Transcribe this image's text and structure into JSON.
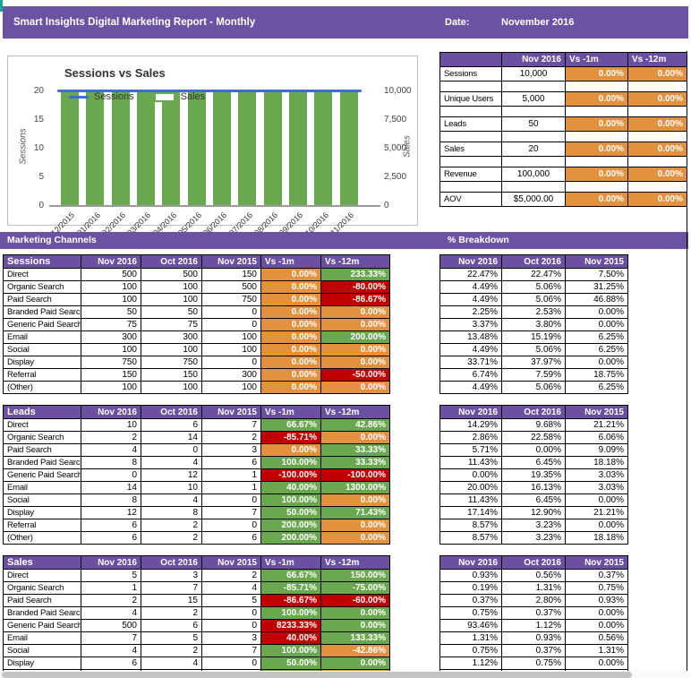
{
  "banner": {
    "title": "Smart Insights Digital Marketing Report - Monthly",
    "date_label": "Date:",
    "date_value": "November 2016"
  },
  "colors": {
    "purple": "#6B4FA1",
    "banner_purple": "#6C52A3",
    "orange": "#E4913E",
    "green": "#6AA84F",
    "red": "#C00000",
    "chart_bar_green": "#6AA850",
    "chart_line_blue": "#3E6FC9",
    "accent_teal": "#14A89B",
    "scrollbar_gray": "#C3C3C3"
  },
  "chart_data": {
    "type": "bar",
    "title": "Sessions vs Sales",
    "categories": [
      "01/12/2015",
      "01/01/2016",
      "01/02/2016",
      "01/03/2016",
      "01/04/2016",
      "01/05/2016",
      "01/06/2016",
      "01/07/2016",
      "01/08/2016",
      "01/09/2016",
      "01/10/2016",
      "01/11/2016"
    ],
    "series": [
      {
        "name": "Sessions",
        "type": "line",
        "color": "#3E6FC9",
        "values": [
          10000,
          10000,
          10000,
          10000,
          10000,
          10000,
          10000,
          10000,
          10000,
          10000,
          10000,
          10000
        ]
      },
      {
        "name": "Sales",
        "type": "bar",
        "color": "#6AA850",
        "values": [
          20,
          20,
          20,
          20,
          20,
          20,
          20,
          20,
          20,
          20,
          20,
          20
        ]
      }
    ],
    "left_axis": {
      "label": "Sessions",
      "ticks": [
        "20",
        "15",
        "10",
        "5",
        "0"
      ],
      "range": [
        0,
        20
      ]
    },
    "right_axis": {
      "label": "Sales",
      "ticks": [
        "10,000",
        "7,500",
        "5,000",
        "2,500",
        "0"
      ],
      "range": [
        0,
        10000
      ]
    },
    "legend_position": "top-left-inside",
    "grid": false
  },
  "summary": {
    "columns": [
      "",
      "Nov 2016",
      "Vs -1m",
      "Vs -12m"
    ],
    "rows": [
      {
        "label": "Sessions",
        "value": "10,000",
        "vs_1m": "0.00%",
        "vs_12m": "0.00%"
      },
      {
        "label": "Unique Users",
        "value": "5,000",
        "vs_1m": "0.00%",
        "vs_12m": "0.00%"
      },
      {
        "label": "Leads",
        "value": "50",
        "vs_1m": "0.00%",
        "vs_12m": "0.00%"
      },
      {
        "label": "Sales",
        "value": "20",
        "vs_1m": "0.00%",
        "vs_12m": "0.00%"
      },
      {
        "label": "Revenue",
        "value": "100,000",
        "vs_1m": "0.00%",
        "vs_12m": "0.00%"
      },
      {
        "label": "AOV",
        "value": "$5,000.00",
        "vs_1m": "0.00%",
        "vs_12m": "0.00%"
      }
    ]
  },
  "section_bar": {
    "left_label": "Marketing Channels",
    "right_label": "% Breakdown"
  },
  "channel_columns": {
    "months": [
      "Nov 2016",
      "Oct 2016",
      "Nov 2015"
    ],
    "vs": [
      "Vs -1m",
      "Vs -12m"
    ]
  },
  "sections": [
    {
      "title": "Sessions",
      "rows": [
        {
          "label": "Direct",
          "nov2016": "500",
          "oct2016": "500",
          "nov2015": "150",
          "vs_1m": {
            "text": "0.00%",
            "color": "orange"
          },
          "vs_12m": {
            "text": "233.33%",
            "color": "green"
          }
        },
        {
          "label": "Organic Search",
          "nov2016": "100",
          "oct2016": "100",
          "nov2015": "500",
          "vs_1m": {
            "text": "0.00%",
            "color": "orange"
          },
          "vs_12m": {
            "text": "-80.00%",
            "color": "red"
          }
        },
        {
          "label": "Paid Search",
          "nov2016": "100",
          "oct2016": "100",
          "nov2015": "750",
          "vs_1m": {
            "text": "0.00%",
            "color": "orange"
          },
          "vs_12m": {
            "text": "-86.67%",
            "color": "red"
          }
        },
        {
          "label": "Branded Paid Search",
          "nov2016": "50",
          "oct2016": "50",
          "nov2015": "0",
          "vs_1m": {
            "text": "0.00%",
            "color": "orange"
          },
          "vs_12m": {
            "text": "0.00%",
            "color": "orange"
          }
        },
        {
          "label": "Generic Paid Search",
          "nov2016": "75",
          "oct2016": "75",
          "nov2015": "0",
          "vs_1m": {
            "text": "0.00%",
            "color": "orange"
          },
          "vs_12m": {
            "text": "0.00%",
            "color": "orange"
          }
        },
        {
          "label": "Email",
          "nov2016": "300",
          "oct2016": "300",
          "nov2015": "100",
          "vs_1m": {
            "text": "0.00%",
            "color": "orange"
          },
          "vs_12m": {
            "text": "200.00%",
            "color": "green"
          }
        },
        {
          "label": "Social",
          "nov2016": "100",
          "oct2016": "100",
          "nov2015": "100",
          "vs_1m": {
            "text": "0.00%",
            "color": "orange"
          },
          "vs_12m": {
            "text": "0.00%",
            "color": "orange"
          }
        },
        {
          "label": "Display",
          "nov2016": "750",
          "oct2016": "750",
          "nov2015": "0",
          "vs_1m": {
            "text": "0.00%",
            "color": "orange"
          },
          "vs_12m": {
            "text": "0.00%",
            "color": "orange"
          }
        },
        {
          "label": "Referral",
          "nov2016": "150",
          "oct2016": "150",
          "nov2015": "300",
          "vs_1m": {
            "text": "0.00%",
            "color": "orange"
          },
          "vs_12m": {
            "text": "-50.00%",
            "color": "red"
          }
        },
        {
          "label": "(Other)",
          "nov2016": "100",
          "oct2016": "100",
          "nov2015": "100",
          "vs_1m": {
            "text": "0.00%",
            "color": "orange"
          },
          "vs_12m": {
            "text": "0.00%",
            "color": "orange"
          }
        }
      ],
      "breakdown_rows": [
        [
          "22.47%",
          "22.47%",
          "7.50%"
        ],
        [
          "4.49%",
          "5.06%",
          "31.25%"
        ],
        [
          "4.49%",
          "5.06%",
          "46.88%"
        ],
        [
          "2.25%",
          "2.53%",
          "0.00%"
        ],
        [
          "3.37%",
          "3.80%",
          "0.00%"
        ],
        [
          "13.48%",
          "15.19%",
          "6.25%"
        ],
        [
          "4.49%",
          "5.06%",
          "6.25%"
        ],
        [
          "33.71%",
          "37.97%",
          "0.00%"
        ],
        [
          "6.74%",
          "7.59%",
          "18.75%"
        ],
        [
          "4.49%",
          "5.06%",
          "6.25%"
        ]
      ]
    },
    {
      "title": "Leads",
      "rows": [
        {
          "label": "Direct",
          "nov2016": "10",
          "oct2016": "6",
          "nov2015": "7",
          "vs_1m": {
            "text": "66.67%",
            "color": "green"
          },
          "vs_12m": {
            "text": "42.86%",
            "color": "green"
          }
        },
        {
          "label": "Organic Search",
          "nov2016": "2",
          "oct2016": "14",
          "nov2015": "2",
          "vs_1m": {
            "text": "-85.71%",
            "color": "red"
          },
          "vs_12m": {
            "text": "0.00%",
            "color": "orange"
          }
        },
        {
          "label": "Paid Search",
          "nov2016": "4",
          "oct2016": "0",
          "nov2015": "3",
          "vs_1m": {
            "text": "0.00%",
            "color": "orange"
          },
          "vs_12m": {
            "text": "33.33%",
            "color": "green"
          }
        },
        {
          "label": "Branded Paid Search",
          "nov2016": "8",
          "oct2016": "4",
          "nov2015": "6",
          "vs_1m": {
            "text": "100.00%",
            "color": "green"
          },
          "vs_12m": {
            "text": "33.33%",
            "color": "green"
          }
        },
        {
          "label": "Generic Paid Search",
          "nov2016": "0",
          "oct2016": "12",
          "nov2015": "1",
          "vs_1m": {
            "text": "-100.00%",
            "color": "red"
          },
          "vs_12m": {
            "text": "-100.00%",
            "color": "red"
          }
        },
        {
          "label": "Email",
          "nov2016": "14",
          "oct2016": "10",
          "nov2015": "1",
          "vs_1m": {
            "text": "40.00%",
            "color": "green"
          },
          "vs_12m": {
            "text": "1300.00%",
            "color": "green"
          }
        },
        {
          "label": "Social",
          "nov2016": "8",
          "oct2016": "4",
          "nov2015": "0",
          "vs_1m": {
            "text": "100.00%",
            "color": "green"
          },
          "vs_12m": {
            "text": "0.00%",
            "color": "orange"
          }
        },
        {
          "label": "Display",
          "nov2016": "12",
          "oct2016": "8",
          "nov2015": "7",
          "vs_1m": {
            "text": "50.00%",
            "color": "green"
          },
          "vs_12m": {
            "text": "71.43%",
            "color": "green"
          }
        },
        {
          "label": "Referral",
          "nov2016": "6",
          "oct2016": "2",
          "nov2015": "0",
          "vs_1m": {
            "text": "200.00%",
            "color": "green"
          },
          "vs_12m": {
            "text": "0.00%",
            "color": "orange"
          }
        },
        {
          "label": "(Other)",
          "nov2016": "6",
          "oct2016": "2",
          "nov2015": "6",
          "vs_1m": {
            "text": "200.00%",
            "color": "green"
          },
          "vs_12m": {
            "text": "0.00%",
            "color": "orange"
          }
        }
      ],
      "breakdown_rows": [
        [
          "14.29%",
          "9.68%",
          "21.21%"
        ],
        [
          "2.86%",
          "22.58%",
          "6.06%"
        ],
        [
          "5.71%",
          "0.00%",
          "9.09%"
        ],
        [
          "11.43%",
          "6.45%",
          "18.18%"
        ],
        [
          "0.00%",
          "19.35%",
          "3.03%"
        ],
        [
          "20.00%",
          "16.13%",
          "3.03%"
        ],
        [
          "11.43%",
          "6.45%",
          "0.00%"
        ],
        [
          "17.14%",
          "12.90%",
          "21.21%"
        ],
        [
          "8.57%",
          "3.23%",
          "0.00%"
        ],
        [
          "8.57%",
          "3.23%",
          "18.18%"
        ]
      ]
    },
    {
      "title": "Sales",
      "rows": [
        {
          "label": "Direct",
          "nov2016": "5",
          "oct2016": "3",
          "nov2015": "2",
          "vs_1m": {
            "text": "66.67%",
            "color": "green"
          },
          "vs_12m": {
            "text": "150.00%",
            "color": "green"
          }
        },
        {
          "label": "Organic Search",
          "nov2016": "1",
          "oct2016": "7",
          "nov2015": "4",
          "vs_1m": {
            "text": "-85.71%",
            "color": "green"
          },
          "vs_12m": {
            "text": "-75.00%",
            "color": "green"
          }
        },
        {
          "label": "Paid Search",
          "nov2016": "2",
          "oct2016": "15",
          "nov2015": "5",
          "vs_1m": {
            "text": "-86.67%",
            "color": "red"
          },
          "vs_12m": {
            "text": "-60.00%",
            "color": "red"
          }
        },
        {
          "label": "Branded Paid Search",
          "nov2016": "4",
          "oct2016": "2",
          "nov2015": "0",
          "vs_1m": {
            "text": "100.00%",
            "color": "green"
          },
          "vs_12m": {
            "text": "0.00%",
            "color": "green"
          }
        },
        {
          "label": "Generic Paid Search",
          "nov2016": "500",
          "oct2016": "6",
          "nov2015": "0",
          "vs_1m": {
            "text": "8233.33%",
            "color": "red"
          },
          "vs_12m": {
            "text": "0.00%",
            "color": "green"
          }
        },
        {
          "label": "Email",
          "nov2016": "7",
          "oct2016": "5",
          "nov2015": "3",
          "vs_1m": {
            "text": "40.00%",
            "color": "red"
          },
          "vs_12m": {
            "text": "133.33%",
            "color": "green"
          }
        },
        {
          "label": "Social",
          "nov2016": "4",
          "oct2016": "2",
          "nov2015": "7",
          "vs_1m": {
            "text": "100.00%",
            "color": "green"
          },
          "vs_12m": {
            "text": "-42.86%",
            "color": "orange"
          }
        },
        {
          "label": "Display",
          "nov2016": "6",
          "oct2016": "4",
          "nov2015": "0",
          "vs_1m": {
            "text": "50.00%",
            "color": "green"
          },
          "vs_12m": {
            "text": "0.00%",
            "color": "green"
          }
        },
        {
          "label": "",
          "partial": true,
          "nov2016": "",
          "oct2016": "",
          "nov2015": "",
          "vs_1m": {
            "text": "",
            "color": "green"
          },
          "vs_12m": {
            "text": "",
            "color": "orange"
          }
        }
      ],
      "breakdown_rows": [
        [
          "0.93%",
          "0.56%",
          "0.37%"
        ],
        [
          "0.19%",
          "1.31%",
          "0.75%"
        ],
        [
          "0.37%",
          "2.80%",
          "0.93%"
        ],
        [
          "0.75%",
          "0.37%",
          "0.00%"
        ],
        [
          "93.46%",
          "1.12%",
          "0.00%"
        ],
        [
          "1.31%",
          "0.93%",
          "0.56%"
        ],
        [
          "0.75%",
          "0.37%",
          "1.31%"
        ],
        [
          "1.12%",
          "0.75%",
          "0.00%"
        ],
        [
          "",
          "",
          ""
        ]
      ]
    }
  ]
}
